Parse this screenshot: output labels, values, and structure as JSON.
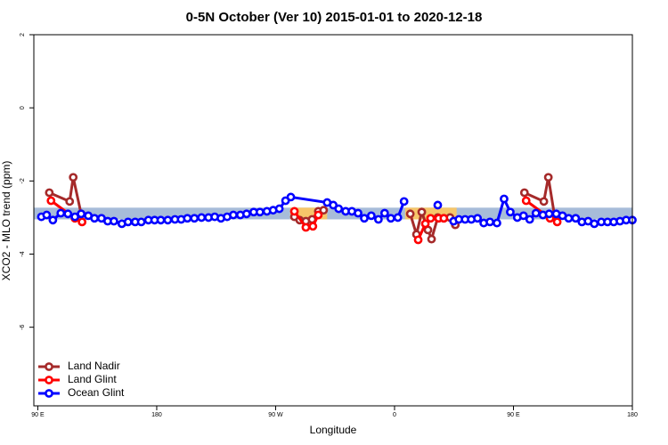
{
  "chart_data": {
    "type": "line",
    "title": "0-5N October (Ver 10)   2015-01-01 to 2020-12-18",
    "x_label": "Longitude",
    "y_label": "XCO2 - MLO trend (ppm)",
    "xlim": [
      87,
      540
    ],
    "ylim": [
      -8.15,
      2
    ],
    "xticks": [
      {
        "value": 90,
        "label": "90 E"
      },
      180,
      {
        "value": 270,
        "label": "90 W"
      },
      {
        "value": 360,
        "label": "0"
      },
      {
        "value": 450,
        "label": "90 E"
      },
      {
        "value": 540,
        "label": "180"
      }
    ],
    "yticks": [
      2,
      0,
      -2,
      -4,
      -6
    ],
    "legend": "bottom-left",
    "bands": [
      {
        "xlim": [
          87,
          540
        ],
        "ylim": [
          -3.05,
          -2.73
        ],
        "color": "#a7bcd9"
      },
      {
        "xlim": [
          281,
          309
        ],
        "ylim": [
          -3.05,
          -2.73
        ],
        "color": "#f6c66a"
      },
      {
        "xlim": [
          368,
          407
        ],
        "ylim": [
          -3.05,
          -2.73
        ],
        "color": "#f6c66a"
      }
    ],
    "series": [
      {
        "name": "Land Nadir",
        "color": "#a52a2a",
        "x": [
          98.7,
          114.1,
          116.8,
          122.8,
          null,
          284.2,
          288.2,
          292.9,
          297.6,
          302.3,
          306.3,
          null,
          371.9,
          376.6,
          380.6,
          385.3,
          388.0,
          392.7,
          397.3,
          402.0,
          406.0,
          null,
          458.3,
          473.0,
          476.4,
          481.0
        ],
        "values": [
          -2.32,
          -2.56,
          -1.9,
          -2.9,
          null,
          -2.98,
          -3.07,
          -3.1,
          -3.05,
          -2.83,
          -2.8,
          null,
          -2.9,
          -3.46,
          -2.85,
          -3.34,
          -3.59,
          -3.0,
          -3.02,
          -3.0,
          -3.2,
          null,
          -2.32,
          -2.56,
          -1.9,
          -2.93
        ]
      },
      {
        "name": "Land Glint",
        "color": "#ff0000",
        "x": [
          100.0,
          118.1,
          123.5,
          null,
          284.2,
          292.9,
          298.2,
          302.3,
          null,
          377.9,
          383.3,
          387.3,
          393.4,
          397.3,
          null,
          459.6,
          477.7,
          483.1
        ],
        "values": [
          -2.54,
          -3.02,
          -3.12,
          null,
          -2.83,
          -3.27,
          -3.24,
          -2.93,
          null,
          -3.61,
          -3.17,
          -3.02,
          -3.02,
          -3.02,
          null,
          -2.54,
          -3.02,
          -3.12
        ]
      },
      {
        "name": "Ocean Glint",
        "color": "#0000ff",
        "x": [
          92.7,
          96.7,
          101.4,
          107.4,
          112.8,
          118.1,
          122.8,
          128.2,
          132.9,
          138.2,
          142.9,
          147.6,
          153.6,
          158.3,
          163.7,
          168.3,
          173.7,
          178.4,
          183.1,
          188.4,
          193.8,
          198.5,
          203.2,
          208.5,
          213.9,
          219.2,
          223.9,
          228.6,
          233.3,
          238.0,
          243.3,
          248.0,
          253.4,
          258.1,
          263.4,
          268.1,
          272.8,
          277.5,
          281.5,
          309.0,
          313.6,
          317.7,
          323.0,
          327.7,
          332.4,
          337.1,
          342.4,
          347.8,
          352.5,
          357.2,
          362.5,
          367.2,
          null,
          392.7,
          null,
          404.7,
          408.7,
          413.4,
          418.1,
          422.8,
          427.5,
          432.2,
          437.5,
          442.9,
          447.6,
          452.9,
          457.6,
          462.3,
          467.0,
          472.3,
          477.0,
          482.4,
          487.1,
          491.8,
          497.1,
          501.8,
          506.5,
          511.2,
          516.5,
          521.2,
          525.9,
          530.6,
          535.3,
          540.0
        ],
        "values": [
          -2.98,
          -2.93,
          -3.07,
          -2.88,
          -2.9,
          -2.98,
          -2.9,
          -2.95,
          -3.02,
          -3.02,
          -3.1,
          -3.1,
          -3.17,
          -3.12,
          -3.12,
          -3.12,
          -3.07,
          -3.07,
          -3.07,
          -3.07,
          -3.05,
          -3.05,
          -3.02,
          -3.02,
          -3.0,
          -3.0,
          -2.98,
          -3.02,
          -2.98,
          -2.93,
          -2.93,
          -2.9,
          -2.85,
          -2.85,
          -2.83,
          -2.8,
          -2.76,
          -2.54,
          -2.44,
          -2.59,
          -2.66,
          -2.76,
          -2.83,
          -2.83,
          -2.88,
          -3.02,
          -2.95,
          -3.05,
          -2.88,
          -3.02,
          -3.0,
          -2.56,
          null,
          -2.66,
          null,
          -3.1,
          -3.05,
          -3.05,
          -3.05,
          -3.02,
          -3.15,
          -3.12,
          -3.15,
          -2.49,
          -2.85,
          -3.0,
          -2.95,
          -3.05,
          -2.88,
          -2.93,
          -2.9,
          -2.9,
          -2.95,
          -3.02,
          -3.02,
          -3.12,
          -3.1,
          -3.17,
          -3.12,
          -3.12,
          -3.12,
          -3.1,
          -3.07,
          -3.07
        ]
      }
    ]
  }
}
